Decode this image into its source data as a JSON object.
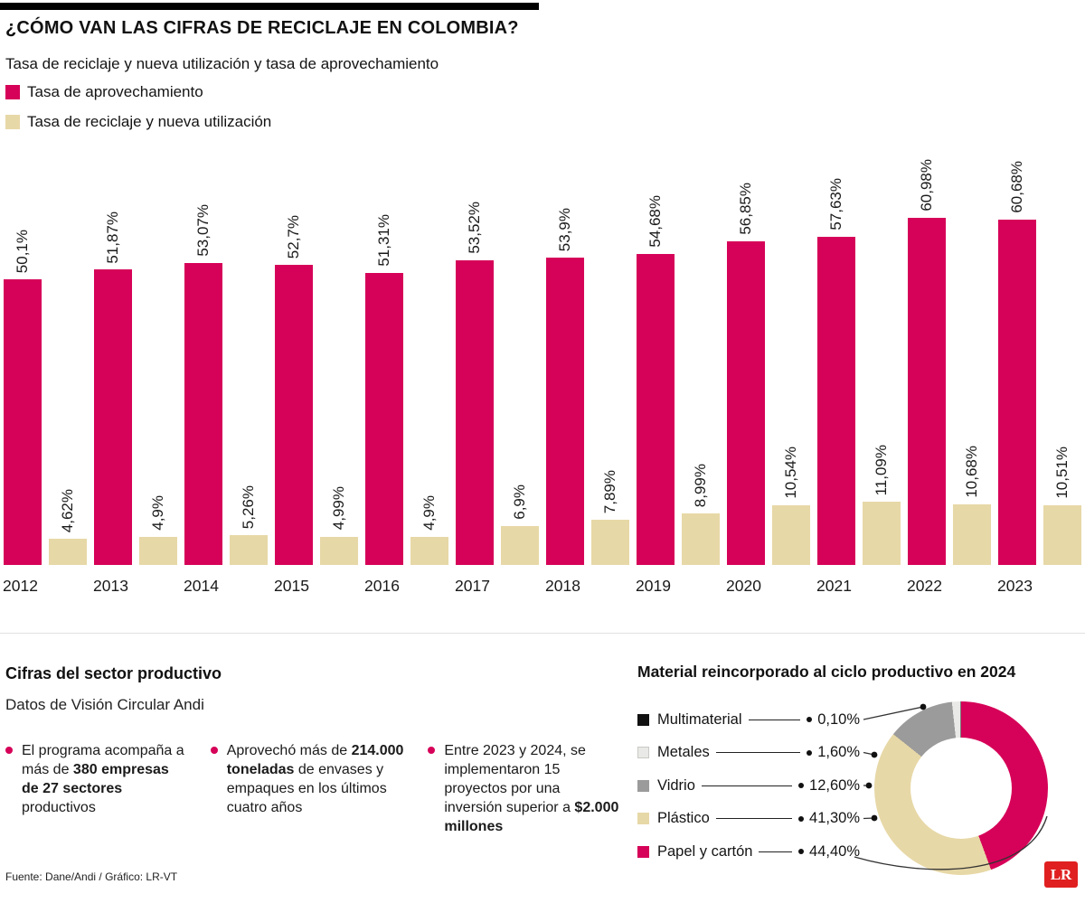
{
  "header": {
    "title": "¿CÓMO VAN LAS CIFRAS DE RECICLAJE EN COLOMBIA?",
    "subtitle": "Tasa de reciclaje y nueva utilización  y tasa de aprovechamiento"
  },
  "chart_data": [
    {
      "type": "bar",
      "title": "Tasa de reciclaje y nueva utilización  y tasa de aprovechamiento",
      "categories": [
        "2012",
        "2013",
        "2014",
        "2015",
        "2016",
        "2017",
        "2018",
        "2019",
        "2020",
        "2021",
        "2022",
        "2023"
      ],
      "series": [
        {
          "name": "Tasa de aprovechamiento",
          "color": "#D60158",
          "values": [
            50.1,
            51.87,
            53.07,
            52.7,
            51.31,
            53.52,
            53.9,
            54.68,
            56.85,
            57.63,
            60.98,
            60.68
          ],
          "labels": [
            "50,1%",
            "51,87%",
            "53,07%",
            "52,7%",
            "51,31%",
            "53,52%",
            "53,9%",
            "54,68%",
            "56,85%",
            "57,63%",
            "60,98%",
            "60,68%"
          ]
        },
        {
          "name": "Tasa de reciclaje y nueva utilización",
          "color": "#E7D8A7",
          "values": [
            4.62,
            4.9,
            5.26,
            4.99,
            4.9,
            6.9,
            7.89,
            8.99,
            10.54,
            11.09,
            10.68,
            10.51
          ],
          "labels": [
            "4,62%",
            "4,9%",
            "5,26%",
            "4,99%",
            "4,9%",
            "6,9%",
            "7,89%",
            "8,99%",
            "10,54%",
            "11,09%",
            "10,68%",
            "10,51%"
          ]
        }
      ],
      "ylim": [
        0,
        68
      ],
      "grid": false,
      "legend_position": "top-left",
      "value_label_rotation": 90
    },
    {
      "type": "pie",
      "title": "Material reincorporado al ciclo productivo en 2024",
      "slices": [
        {
          "label": "Multimaterial",
          "value": 0.1,
          "display": "0,10%",
          "color": "#111111"
        },
        {
          "label": "Metales",
          "value": 1.6,
          "display": "1,60%",
          "color": "#E9E9E7"
        },
        {
          "label": "Vidrio",
          "value": 12.6,
          "display": "12,60%",
          "color": "#9B9B9B"
        },
        {
          "label": "Plástico",
          "value": 41.3,
          "display": "41,30%",
          "color": "#E7D8A7"
        },
        {
          "label": "Papel y cartón",
          "value": 44.4,
          "display": "44,40%",
          "color": "#D60158"
        }
      ],
      "donut": true
    }
  ],
  "sector": {
    "title": "Cifras del sector productivo",
    "subtitle": "Datos de Visión Circular Andi",
    "bullet_color": "#D60158",
    "bullets": [
      {
        "segments": [
          {
            "text": "El programa acompaña a más de ",
            "bold": false
          },
          {
            "text": "380 empresas de 27 sectores",
            "bold": true
          },
          {
            "text": " productivos",
            "bold": false
          }
        ]
      },
      {
        "segments": [
          {
            "text": "Aprovechó más de ",
            "bold": false
          },
          {
            "text": "214.000 toneladas",
            "bold": true
          },
          {
            "text": " de envases y empaques en los últimos cuatro años",
            "bold": false
          }
        ]
      },
      {
        "segments": [
          {
            "text": "Entre 2023 y 2024, se implementaron 15 proyectos por una inversión superior a ",
            "bold": false
          },
          {
            "text": "$2.000 millones",
            "bold": true
          }
        ]
      }
    ]
  },
  "footer": {
    "source": "Fuente: Dane/Andi  / Gráfico: LR-VT",
    "logo_text": "LR",
    "logo_color": "#E02020"
  }
}
